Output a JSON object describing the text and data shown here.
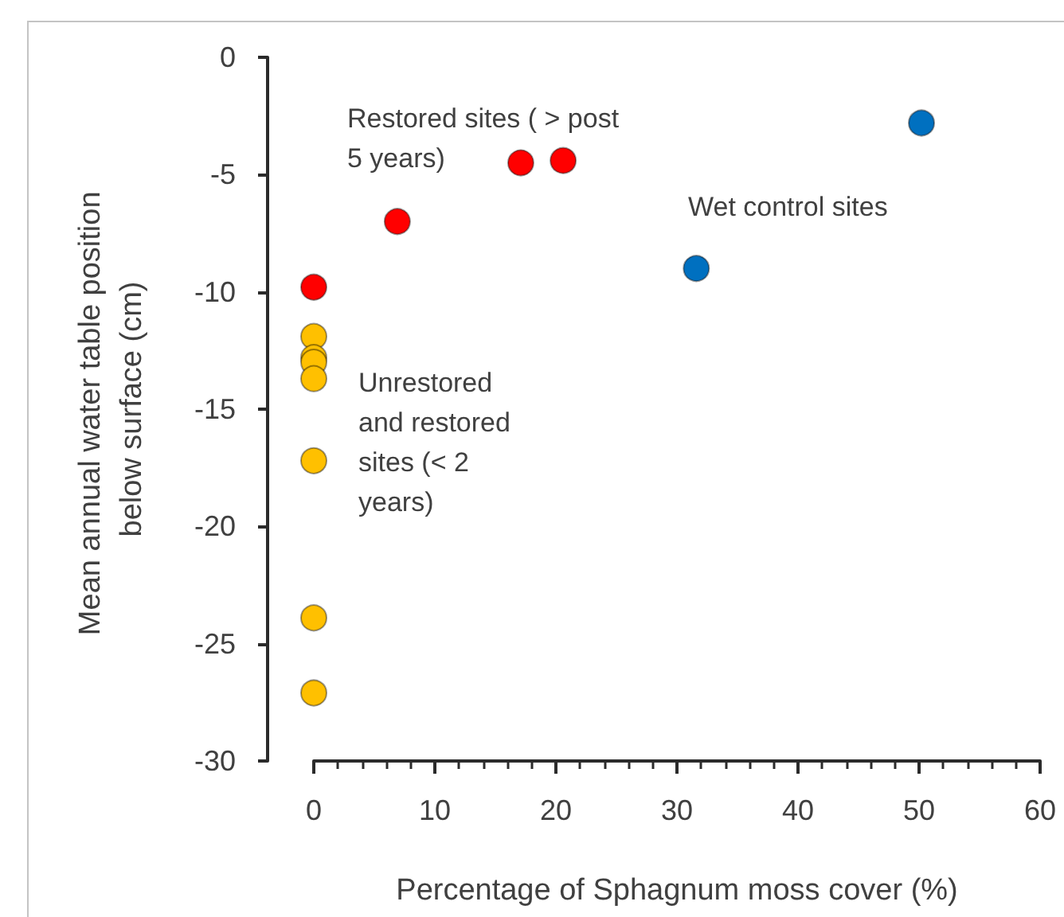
{
  "chart_data": {
    "type": "scatter",
    "xlabel": "Percentage of Sphagnum moss cover (%)",
    "ylabel": "Mean annual water table position below surface (cm)",
    "xlim": [
      0,
      60
    ],
    "ylim": [
      -30,
      0
    ],
    "xticks": [
      0,
      {
        "value": 2,
        "label": null
      },
      {
        "value": 4,
        "label": null
      },
      {
        "value": 6,
        "label": null
      },
      {
        "value": 8,
        "label": null
      },
      10,
      {
        "value": 12,
        "label": null
      },
      {
        "value": 14,
        "label": null
      },
      {
        "value": 16,
        "label": null
      },
      {
        "value": 18,
        "label": null
      },
      20,
      {
        "value": 22,
        "label": null
      },
      {
        "value": 24,
        "label": null
      },
      {
        "value": 26,
        "label": null
      },
      {
        "value": 28,
        "label": null
      },
      30,
      {
        "value": 32,
        "label": null
      },
      {
        "value": 34,
        "label": null
      },
      {
        "value": 36,
        "label": null
      },
      {
        "value": 38,
        "label": null
      },
      40,
      {
        "value": 42,
        "label": null
      },
      {
        "value": 44,
        "label": null
      },
      {
        "value": 46,
        "label": null
      },
      {
        "value": 48,
        "label": null
      },
      50,
      {
        "value": 52,
        "label": null
      },
      {
        "value": 54,
        "label": null
      },
      {
        "value": 56,
        "label": null
      },
      {
        "value": 58,
        "label": null
      },
      60
    ],
    "yticks": [
      0,
      -5,
      -10,
      -15,
      -20,
      -25,
      -30
    ],
    "marker": "circle",
    "series": [
      {
        "color": "#ff0000",
        "x": [
          0,
          6.9,
          17.1,
          20.6
        ],
        "values": [
          -9.8,
          -7.0,
          -4.5,
          -4.4
        ]
      },
      {
        "color": "#ffc000",
        "x": [
          0,
          0,
          0,
          0,
          0,
          0,
          0
        ],
        "values": [
          -11.9,
          -12.8,
          -13.0,
          -13.7,
          -17.2,
          -23.9,
          -27.1
        ]
      },
      {
        "color": "#0070c0",
        "x": [
          31.6,
          50.2
        ],
        "values": [
          -9.0,
          -2.8
        ]
      }
    ],
    "annotations": [
      "Restored sites ( > post 5 years)",
      "Wet control sites",
      "Unrestored and restored sites (< 2 years)"
    ]
  }
}
